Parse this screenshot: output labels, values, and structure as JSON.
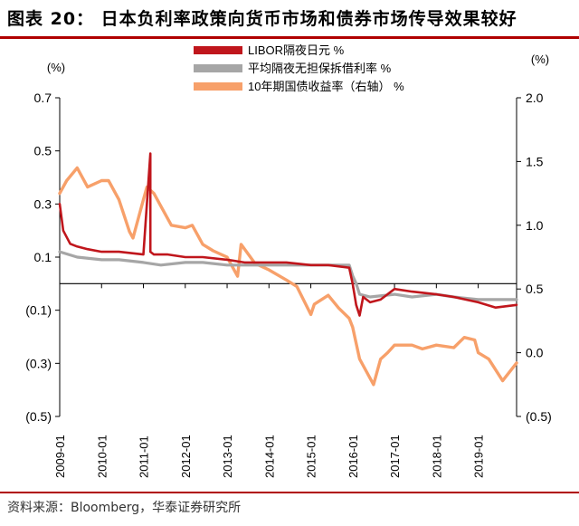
{
  "title": "图表 20：  日本负利率政策向货币市场和债券市场传导效果较好",
  "source": "资料来源：Bloomberg，华泰证券研究所",
  "colors": {
    "libor": "#c0161c",
    "avg_rate": "#a6a6a6",
    "jgb10": "#f7a06a",
    "rule": "#b00000"
  },
  "chart_data": {
    "type": "line",
    "legend_position": "top",
    "grid": false,
    "left_axis": {
      "unit_label": "(%)",
      "range": [
        -0.5,
        0.7
      ],
      "ticks": [
        0.7,
        0.5,
        0.3,
        0.1,
        -0.1,
        -0.3,
        -0.5
      ],
      "tick_labels": [
        "0.7",
        "0.5",
        "0.3",
        "0.1",
        "(0.1)",
        "(0.3)",
        "(0.5)"
      ]
    },
    "right_axis": {
      "unit_label": "(%)",
      "range": [
        -0.5,
        2.0
      ],
      "ticks": [
        2.0,
        1.5,
        1.0,
        0.5,
        0.0,
        -0.5
      ],
      "tick_labels": [
        "2.0",
        "1.5",
        "1.0",
        "0.5",
        "0.0",
        "(0.5)"
      ]
    },
    "x_axis": {
      "range": [
        "2009-01",
        "2019-12"
      ],
      "tick_labels": [
        "2009-01",
        "2010-01",
        "2011-01",
        "2012-01",
        "2013-01",
        "2014-01",
        "2015-01",
        "2016-01",
        "2017-01",
        "2018-01",
        "2019-01"
      ]
    },
    "series": [
      {
        "name": "LIBOR隔夜日元 %",
        "axis": "left",
        "x": [
          "2009-01",
          "2009-02",
          "2009-04",
          "2009-06",
          "2009-09",
          "2010-01",
          "2010-06",
          "2011-01",
          "2011-03",
          "2011-03",
          "2011-04",
          "2011-08",
          "2012-01",
          "2012-06",
          "2013-01",
          "2013-06",
          "2014-01",
          "2014-06",
          "2015-01",
          "2015-06",
          "2015-12",
          "2016-01",
          "2016-02",
          "2016-03",
          "2016-04",
          "2016-06",
          "2016-09",
          "2017-01",
          "2017-06",
          "2018-01",
          "2018-06",
          "2019-01",
          "2019-06",
          "2019-12"
        ],
        "y": [
          0.3,
          0.2,
          0.15,
          0.14,
          0.13,
          0.12,
          0.12,
          0.11,
          0.49,
          0.12,
          0.11,
          0.11,
          0.1,
          0.1,
          0.09,
          0.08,
          0.08,
          0.08,
          0.07,
          0.07,
          0.06,
          0.0,
          -0.08,
          -0.12,
          -0.05,
          -0.07,
          -0.06,
          -0.02,
          -0.03,
          -0.04,
          -0.05,
          -0.07,
          -0.09,
          -0.08
        ]
      },
      {
        "name": "平均隔夜无担保拆借利率 %",
        "axis": "left",
        "x": [
          "2009-01",
          "2009-06",
          "2010-01",
          "2010-06",
          "2011-01",
          "2011-06",
          "2012-01",
          "2012-06",
          "2013-01",
          "2013-06",
          "2014-01",
          "2014-06",
          "2015-01",
          "2015-06",
          "2015-12",
          "2016-01",
          "2016-02",
          "2016-03",
          "2016-06",
          "2017-01",
          "2017-06",
          "2018-01",
          "2018-06",
          "2019-01",
          "2019-06",
          "2019-12"
        ],
        "y": [
          0.12,
          0.1,
          0.09,
          0.09,
          0.08,
          0.07,
          0.08,
          0.08,
          0.07,
          0.07,
          0.07,
          0.07,
          0.07,
          0.07,
          0.07,
          0.03,
          0.0,
          -0.04,
          -0.05,
          -0.04,
          -0.05,
          -0.04,
          -0.05,
          -0.06,
          -0.06,
          -0.06
        ]
      },
      {
        "name": "10年期国债收益率（右轴） %",
        "axis": "right",
        "x": [
          "2009-01",
          "2009-03",
          "2009-06",
          "2009-09",
          "2010-01",
          "2010-03",
          "2010-06",
          "2010-09",
          "2010-10",
          "2011-01",
          "2011-02",
          "2011-04",
          "2011-06",
          "2011-09",
          "2012-01",
          "2012-03",
          "2012-06",
          "2012-09",
          "2013-01",
          "2013-04",
          "2013-05",
          "2013-09",
          "2014-01",
          "2014-06",
          "2014-09",
          "2015-01",
          "2015-02",
          "2015-06",
          "2015-09",
          "2015-12",
          "2016-01",
          "2016-03",
          "2016-07",
          "2016-09",
          "2016-11",
          "2017-01",
          "2017-06",
          "2017-09",
          "2018-01",
          "2018-06",
          "2018-09",
          "2018-12",
          "2019-01",
          "2019-04",
          "2019-08",
          "2019-12"
        ],
        "y": [
          1.25,
          1.35,
          1.45,
          1.3,
          1.35,
          1.35,
          1.2,
          0.95,
          0.9,
          1.2,
          1.3,
          1.25,
          1.15,
          1.0,
          0.98,
          1.0,
          0.85,
          0.8,
          0.75,
          0.6,
          0.85,
          0.7,
          0.65,
          0.57,
          0.52,
          0.3,
          0.38,
          0.45,
          0.35,
          0.27,
          0.2,
          -0.05,
          -0.25,
          -0.05,
          0.0,
          0.06,
          0.06,
          0.03,
          0.06,
          0.04,
          0.12,
          0.1,
          0.0,
          -0.05,
          -0.22,
          -0.08
        ]
      }
    ]
  }
}
